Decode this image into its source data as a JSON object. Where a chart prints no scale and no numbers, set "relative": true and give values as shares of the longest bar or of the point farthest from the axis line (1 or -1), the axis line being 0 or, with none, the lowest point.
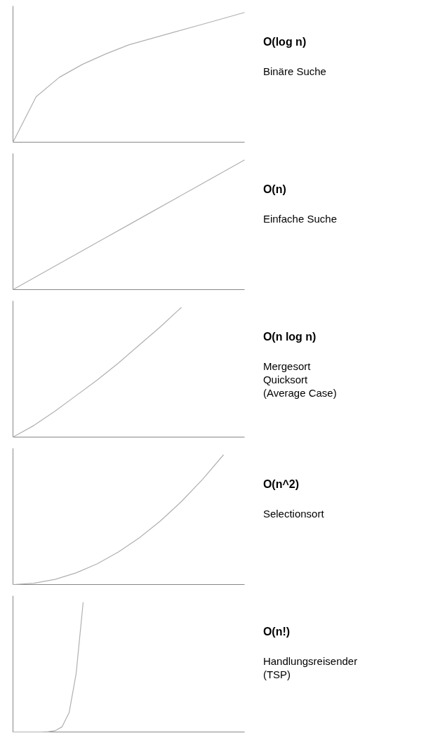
{
  "chart_data": [
    {
      "type": "line",
      "annotations": [
        "O(log n)",
        "Binäre Suche"
      ],
      "relative": true,
      "categories": [
        null,
        null,
        null,
        null,
        null,
        null,
        null,
        null,
        null,
        null,
        null
      ],
      "series": [
        {
          "color": "#b0b0b0",
          "values": [
            0,
            0.35,
            0.5,
            0.6,
            0.68,
            0.75,
            0.8,
            0.85,
            0.9,
            0.95,
            1.0
          ]
        }
      ]
    },
    {
      "type": "line",
      "annotations": [
        "O(n)",
        "Einfache Suche"
      ],
      "relative": true,
      "categories": [
        null,
        null,
        null,
        null,
        null,
        null,
        null,
        null,
        null,
        null,
        null
      ],
      "series": [
        {
          "color": "#b0b0b0",
          "values": [
            0,
            0.1,
            0.2,
            0.3,
            0.4,
            0.5,
            0.6,
            0.7,
            0.8,
            0.9,
            1.0
          ]
        }
      ]
    },
    {
      "type": "line",
      "annotations": [
        "O(n log n)",
        "Mergesort",
        "Quicksort",
        "(Average Case)"
      ],
      "relative": true,
      "categories": [
        null,
        null,
        null,
        null,
        null,
        null,
        null,
        null,
        null,
        null,
        null,
        null
      ],
      "series": [
        {
          "color": "#b0b0b0",
          "values": [
            0,
            0.09,
            0.2,
            0.32,
            0.44,
            0.57,
            0.71,
            0.85,
            1.0,
            null,
            null,
            null
          ]
        }
      ]
    },
    {
      "type": "line",
      "annotations": [
        "O(n^2)",
        "Selectionsort"
      ],
      "relative": true,
      "categories": [
        null,
        null,
        null,
        null,
        null,
        null,
        null,
        null,
        null,
        null,
        null,
        null
      ],
      "series": [
        {
          "color": "#b0b0b0",
          "values": [
            0,
            0.01,
            0.04,
            0.09,
            0.16,
            0.25,
            0.36,
            0.49,
            0.64,
            0.81,
            1.0,
            null
          ]
        }
      ]
    },
    {
      "type": "line",
      "annotations": [
        "O(n!)",
        "Handlungsreisender",
        "(TSP)"
      ],
      "relative": true,
      "categories": [
        null,
        null,
        null,
        null,
        null,
        null,
        null,
        null,
        null,
        null,
        null,
        null,
        null,
        null,
        null,
        null,
        null,
        null,
        null,
        null,
        null,
        null,
        null,
        null,
        null,
        null,
        null,
        null,
        null,
        null,
        null,
        null,
        null,
        null
      ],
      "series": [
        {
          "color": "#b0b0b0",
          "values": [
            0,
            0,
            0,
            0,
            0,
            0.002,
            0.01,
            0.04,
            0.15,
            0.45,
            1.0,
            null,
            null,
            null,
            null,
            null,
            null,
            null,
            null,
            null,
            null,
            null,
            null,
            null,
            null,
            null,
            null,
            null,
            null,
            null,
            null,
            null,
            null,
            null
          ]
        }
      ]
    }
  ]
}
